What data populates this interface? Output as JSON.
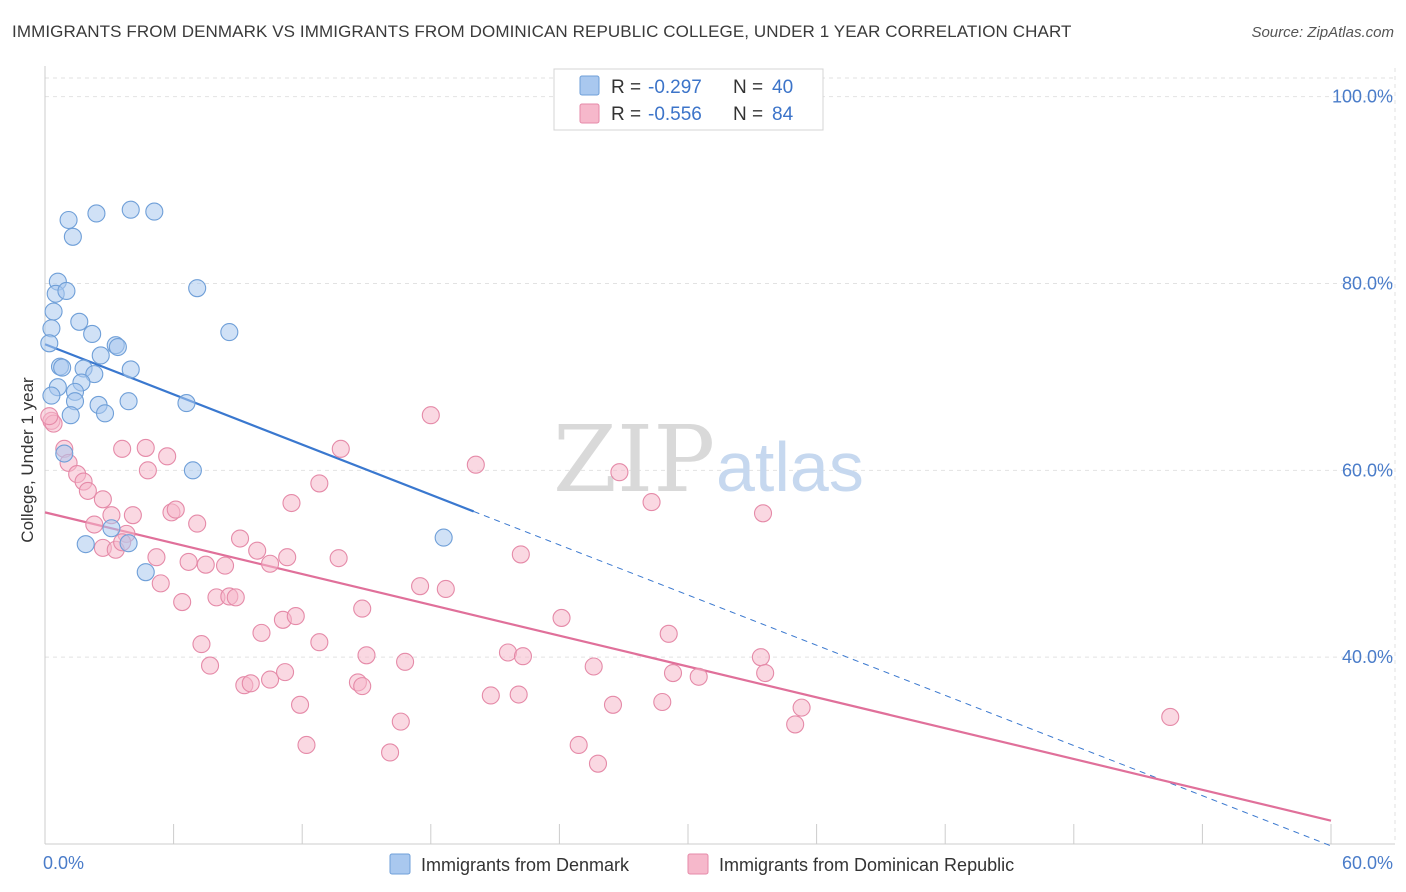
{
  "title": "IMMIGRANTS FROM DENMARK VS IMMIGRANTS FROM DOMINICAN REPUBLIC COLLEGE, UNDER 1 YEAR CORRELATION CHART",
  "source": "Source: ZipAtlas.com",
  "watermark": {
    "zip": "ZIP",
    "atlas": "atlas"
  },
  "legend_box": {
    "rows": [
      {
        "r_label": "R =",
        "r_value": "-0.297",
        "n_label": "N =",
        "n_value": "40",
        "color": "#a9c8ef"
      },
      {
        "r_label": "R =",
        "r_value": "-0.556",
        "n_label": "N =",
        "n_value": "84",
        "color": "#f6b8cb"
      }
    ]
  },
  "chart_data": {
    "type": "scatter",
    "title": "IMMIGRANTS FROM DENMARK VS IMMIGRANTS FROM DOMINICAN REPUBLIC COLLEGE, UNDER 1 YEAR CORRELATION CHART",
    "xlabel": "",
    "ylabel": "College, Under 1 year",
    "xlim": [
      0,
      60
    ],
    "ylim": [
      20,
      102
    ],
    "x_tick_labels": [
      "0.0%",
      "60.0%"
    ],
    "y_ticks": [
      40,
      60,
      80,
      100
    ],
    "y_tick_labels": [
      "40.0%",
      "60.0%",
      "80.0%",
      "100.0%"
    ],
    "grid": true,
    "legend_position": "bottom",
    "series": [
      {
        "name": "Immigrants from Denmark",
        "color": "#a9c8ef",
        "stroke": "#6f9fd8",
        "line_color": "#3a78cf",
        "trend": {
          "x": [
            0,
            20
          ],
          "y": [
            73.5,
            55.6
          ]
        },
        "trend_dashed": {
          "x": [
            20,
            60
          ],
          "y": [
            55.6,
            19.8
          ]
        },
        "points": [
          [
            1.1,
            86.8
          ],
          [
            1.3,
            85.0
          ],
          [
            2.4,
            87.5
          ],
          [
            4.0,
            87.9
          ],
          [
            5.1,
            87.7
          ],
          [
            0.6,
            80.2
          ],
          [
            0.5,
            78.9
          ],
          [
            1.0,
            79.2
          ],
          [
            7.1,
            79.5
          ],
          [
            0.4,
            77.0
          ],
          [
            0.3,
            75.2
          ],
          [
            1.6,
            75.9
          ],
          [
            2.2,
            74.6
          ],
          [
            8.6,
            74.8
          ],
          [
            3.3,
            73.4
          ],
          [
            0.2,
            73.6
          ],
          [
            3.4,
            73.2
          ],
          [
            2.6,
            72.3
          ],
          [
            0.7,
            71.1
          ],
          [
            0.8,
            71.0
          ],
          [
            1.8,
            70.9
          ],
          [
            4.0,
            70.8
          ],
          [
            2.3,
            70.3
          ],
          [
            1.7,
            69.4
          ],
          [
            0.6,
            68.9
          ],
          [
            1.4,
            68.4
          ],
          [
            0.3,
            68.0
          ],
          [
            1.4,
            67.4
          ],
          [
            2.5,
            67.0
          ],
          [
            3.9,
            67.4
          ],
          [
            6.6,
            67.2
          ],
          [
            1.2,
            65.9
          ],
          [
            2.8,
            66.1
          ],
          [
            0.9,
            61.8
          ],
          [
            6.9,
            60.0
          ],
          [
            3.1,
            53.8
          ],
          [
            1.9,
            52.1
          ],
          [
            3.9,
            52.2
          ],
          [
            4.7,
            49.1
          ],
          [
            18.6,
            52.8
          ]
        ]
      },
      {
        "name": "Immigrants from Dominican Republic",
        "color": "#f6b8cb",
        "stroke": "#e58aa8",
        "line_color": "#e0709a",
        "trend": {
          "x": [
            0,
            60
          ],
          "y": [
            55.5,
            22.5
          ]
        },
        "points": [
          [
            0.3,
            65.3
          ],
          [
            0.4,
            65.0
          ],
          [
            0.2,
            65.8
          ],
          [
            0.9,
            62.3
          ],
          [
            1.1,
            60.8
          ],
          [
            1.5,
            59.6
          ],
          [
            1.8,
            58.8
          ],
          [
            2.0,
            57.8
          ],
          [
            2.7,
            56.9
          ],
          [
            3.1,
            55.2
          ],
          [
            2.3,
            54.2
          ],
          [
            3.8,
            53.2
          ],
          [
            2.7,
            51.7
          ],
          [
            3.3,
            51.5
          ],
          [
            3.6,
            52.3
          ],
          [
            3.6,
            62.3
          ],
          [
            4.7,
            62.4
          ],
          [
            4.8,
            60.0
          ],
          [
            5.7,
            61.5
          ],
          [
            4.1,
            55.2
          ],
          [
            5.9,
            55.5
          ],
          [
            6.1,
            55.8
          ],
          [
            7.1,
            54.3
          ],
          [
            5.2,
            50.7
          ],
          [
            6.7,
            50.2
          ],
          [
            5.4,
            47.9
          ],
          [
            6.4,
            45.9
          ],
          [
            7.5,
            49.9
          ],
          [
            8.4,
            49.8
          ],
          [
            9.1,
            52.7
          ],
          [
            9.9,
            51.4
          ],
          [
            10.5,
            50.0
          ],
          [
            11.3,
            50.7
          ],
          [
            11.5,
            56.5
          ],
          [
            12.8,
            58.6
          ],
          [
            13.7,
            50.6
          ],
          [
            13.8,
            62.3
          ],
          [
            8.0,
            46.4
          ],
          [
            8.6,
            46.5
          ],
          [
            8.9,
            46.4
          ],
          [
            7.3,
            41.4
          ],
          [
            7.7,
            39.1
          ],
          [
            10.1,
            42.6
          ],
          [
            11.1,
            44.0
          ],
          [
            11.7,
            44.4
          ],
          [
            12.8,
            41.6
          ],
          [
            14.8,
            45.2
          ],
          [
            15.0,
            40.2
          ],
          [
            16.8,
            39.5
          ],
          [
            17.5,
            47.6
          ],
          [
            18.7,
            47.3
          ],
          [
            18.0,
            65.9
          ],
          [
            20.1,
            60.6
          ],
          [
            20.8,
            35.9
          ],
          [
            22.2,
            51.0
          ],
          [
            21.6,
            40.5
          ],
          [
            22.3,
            40.1
          ],
          [
            9.3,
            37.0
          ],
          [
            9.6,
            37.2
          ],
          [
            10.5,
            37.6
          ],
          [
            11.2,
            38.4
          ],
          [
            11.9,
            34.9
          ],
          [
            12.2,
            30.6
          ],
          [
            14.6,
            37.3
          ],
          [
            14.8,
            36.9
          ],
          [
            16.1,
            29.8
          ],
          [
            16.6,
            33.1
          ],
          [
            22.1,
            36.0
          ],
          [
            24.1,
            44.2
          ],
          [
            24.9,
            30.6
          ],
          [
            25.8,
            28.6
          ],
          [
            25.6,
            39.0
          ],
          [
            26.5,
            34.9
          ],
          [
            26.8,
            59.8
          ],
          [
            28.3,
            56.6
          ],
          [
            28.8,
            35.2
          ],
          [
            29.1,
            42.5
          ],
          [
            29.3,
            38.3
          ],
          [
            30.5,
            37.9
          ],
          [
            33.5,
            55.4
          ],
          [
            33.4,
            40.0
          ],
          [
            33.6,
            38.3
          ],
          [
            35.0,
            32.8
          ],
          [
            35.3,
            34.6
          ],
          [
            52.5,
            33.6
          ]
        ]
      }
    ]
  }
}
